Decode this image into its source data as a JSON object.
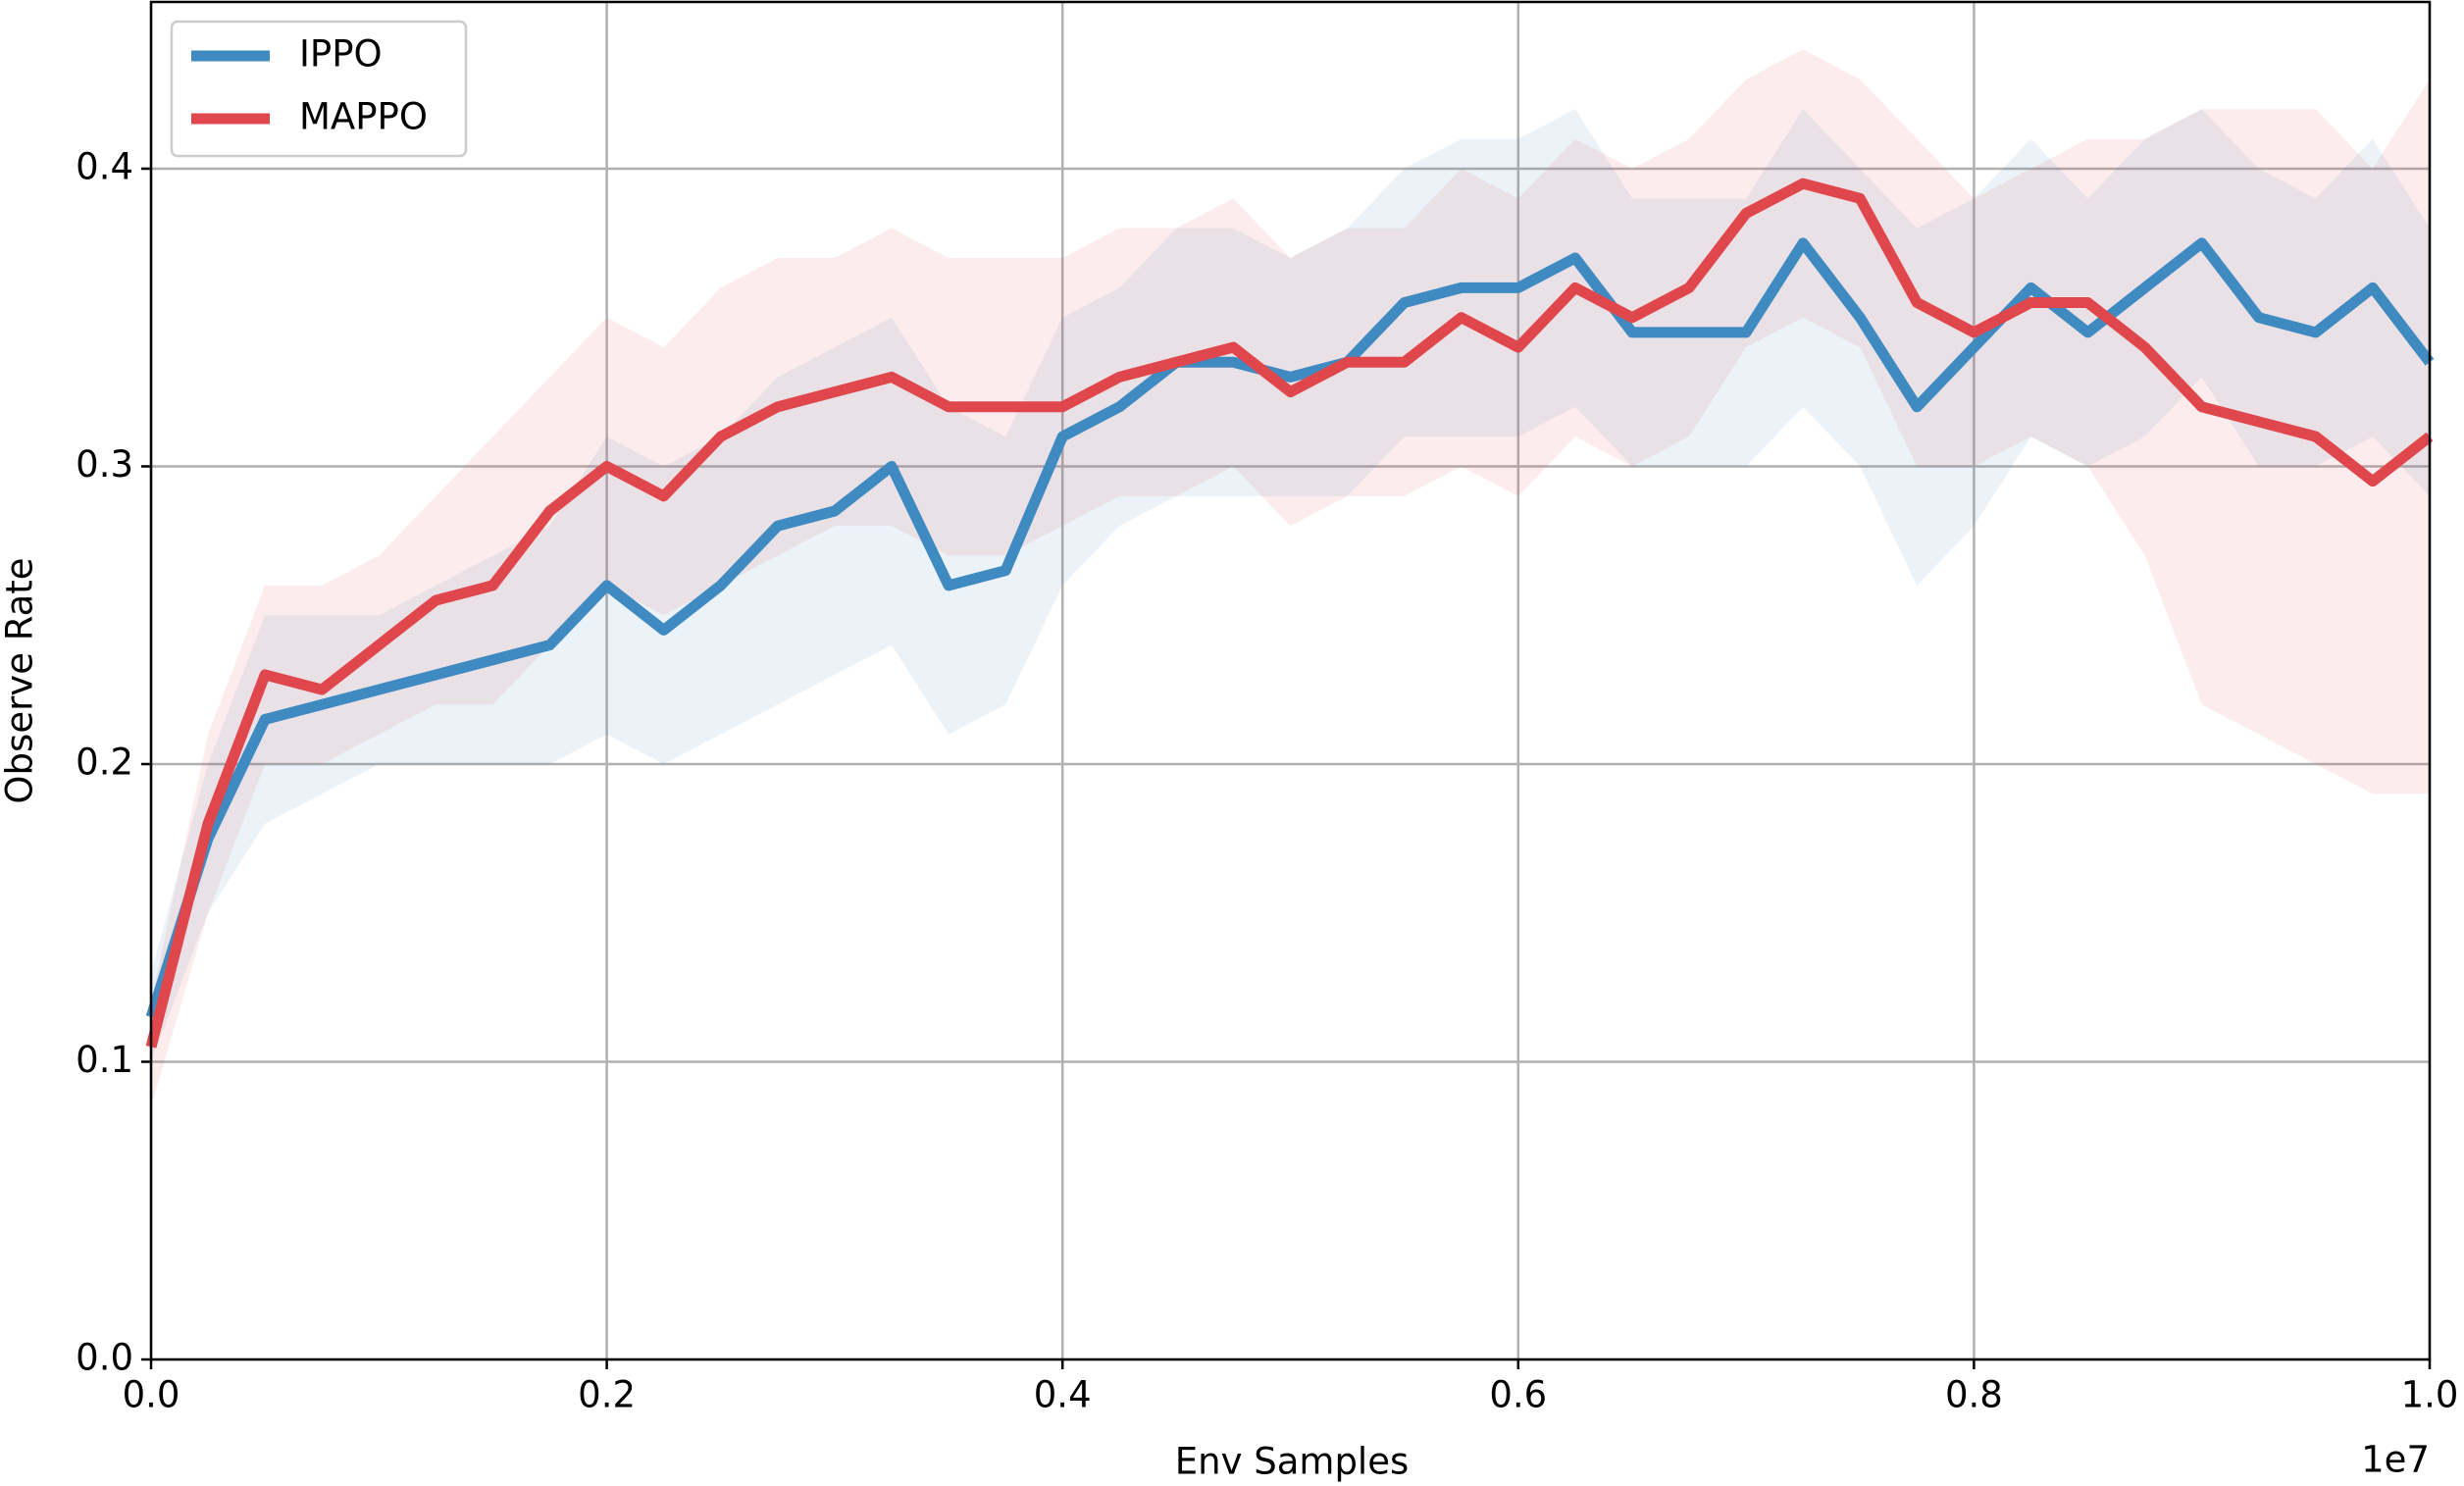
{
  "chart_data": {
    "type": "line",
    "xlabel": "Env Samples",
    "ylabel": "Observe Rate",
    "x_offset_label": "1e7",
    "x": [
      0,
      0.025,
      0.05,
      0.075,
      0.1,
      0.125,
      0.15,
      0.175,
      0.2,
      0.225,
      0.25,
      0.275,
      0.3,
      0.325,
      0.35,
      0.375,
      0.4,
      0.425,
      0.45,
      0.475,
      0.5,
      0.525,
      0.55,
      0.575,
      0.6,
      0.625,
      0.65,
      0.675,
      0.7,
      0.725,
      0.75,
      0.775,
      0.8,
      0.825,
      0.85,
      0.875,
      0.9,
      0.925,
      0.95,
      0.975,
      1.0
    ],
    "series": [
      {
        "name": "IPPO",
        "color": "#3f8bc1",
        "values": [
          0.115,
          0.175,
          0.215,
          0.22,
          0.225,
          0.23,
          0.235,
          0.24,
          0.26,
          0.245,
          0.26,
          0.28,
          0.285,
          0.3,
          0.26,
          0.265,
          0.31,
          0.32,
          0.335,
          0.335,
          0.33,
          0.335,
          0.355,
          0.36,
          0.36,
          0.37,
          0.345,
          0.345,
          0.345,
          0.375,
          0.35,
          0.32,
          0.34,
          0.36,
          0.345,
          0.36,
          0.375,
          0.35,
          0.345,
          0.36,
          0.335
        ],
        "lower": [
          0.1,
          0.15,
          0.18,
          0.19,
          0.2,
          0.2,
          0.2,
          0.2,
          0.21,
          0.2,
          0.21,
          0.22,
          0.23,
          0.24,
          0.21,
          0.22,
          0.26,
          0.28,
          0.29,
          0.29,
          0.29,
          0.29,
          0.31,
          0.31,
          0.31,
          0.32,
          0.3,
          0.3,
          0.3,
          0.32,
          0.3,
          0.26,
          0.28,
          0.31,
          0.3,
          0.31,
          0.33,
          0.3,
          0.3,
          0.31,
          0.29
        ],
        "upper": [
          0.13,
          0.2,
          0.25,
          0.25,
          0.25,
          0.26,
          0.27,
          0.28,
          0.31,
          0.3,
          0.31,
          0.33,
          0.34,
          0.35,
          0.32,
          0.31,
          0.35,
          0.36,
          0.38,
          0.38,
          0.37,
          0.38,
          0.4,
          0.41,
          0.41,
          0.42,
          0.39,
          0.39,
          0.39,
          0.42,
          0.4,
          0.38,
          0.39,
          0.41,
          0.39,
          0.41,
          0.42,
          0.4,
          0.39,
          0.41,
          0.38
        ]
      },
      {
        "name": "MAPPO",
        "color": "#e0474c",
        "values": [
          0.105,
          0.18,
          0.23,
          0.225,
          0.24,
          0.255,
          0.26,
          0.285,
          0.3,
          0.29,
          0.31,
          0.32,
          0.325,
          0.33,
          0.32,
          0.32,
          0.32,
          0.33,
          0.335,
          0.34,
          0.325,
          0.335,
          0.335,
          0.35,
          0.34,
          0.36,
          0.35,
          0.36,
          0.385,
          0.395,
          0.39,
          0.355,
          0.345,
          0.355,
          0.355,
          0.34,
          0.32,
          0.315,
          0.31,
          0.295,
          0.31
        ],
        "lower": [
          0.085,
          0.15,
          0.2,
          0.2,
          0.21,
          0.22,
          0.22,
          0.24,
          0.26,
          0.25,
          0.26,
          0.27,
          0.28,
          0.28,
          0.27,
          0.27,
          0.28,
          0.29,
          0.29,
          0.3,
          0.28,
          0.29,
          0.29,
          0.3,
          0.29,
          0.31,
          0.3,
          0.31,
          0.34,
          0.35,
          0.34,
          0.3,
          0.3,
          0.31,
          0.3,
          0.27,
          0.22,
          0.21,
          0.2,
          0.19,
          0.19
        ],
        "upper": [
          0.12,
          0.21,
          0.26,
          0.26,
          0.27,
          0.29,
          0.31,
          0.33,
          0.35,
          0.34,
          0.36,
          0.37,
          0.37,
          0.38,
          0.37,
          0.37,
          0.37,
          0.38,
          0.38,
          0.39,
          0.37,
          0.38,
          0.38,
          0.4,
          0.39,
          0.41,
          0.4,
          0.41,
          0.43,
          0.44,
          0.43,
          0.41,
          0.39,
          0.4,
          0.41,
          0.41,
          0.42,
          0.42,
          0.42,
          0.4,
          0.43
        ]
      }
    ],
    "xlim": [
      0,
      1.0
    ],
    "xticks": [
      {
        "value": 0,
        "label": "0.0"
      },
      {
        "value": 0.2,
        "label": "0.2"
      },
      {
        "value": 0.4,
        "label": "0.4"
      },
      {
        "value": 0.6,
        "label": "0.6"
      },
      {
        "value": 0.8,
        "label": "0.8"
      },
      {
        "value": 1.0,
        "label": "1.0"
      }
    ],
    "ylim": [
      0,
      0.456
    ],
    "yticks": [
      {
        "value": 0,
        "label": "0.0"
      },
      0.1,
      0.2,
      0.3,
      0.4
    ],
    "grid": true,
    "legend": "upper-left"
  }
}
